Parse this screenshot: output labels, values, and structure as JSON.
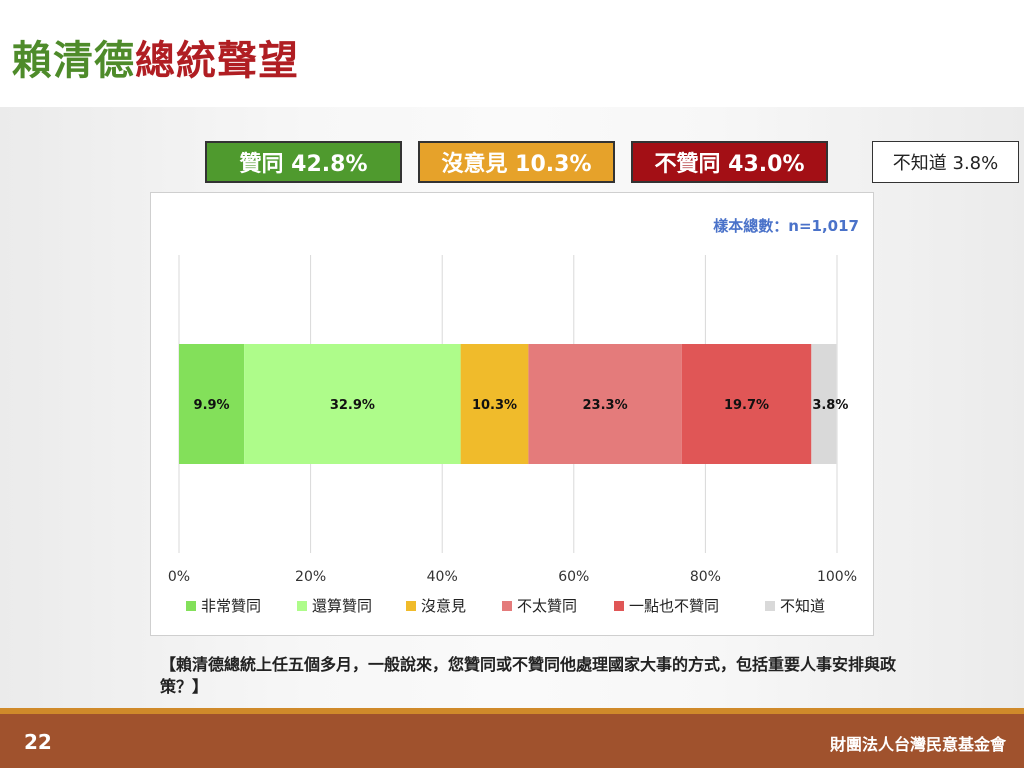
{
  "slide": {
    "title_green": "賴清德",
    "title_red": "總統聲望",
    "page_number": "22",
    "organization": "財團法人台灣民意基金會",
    "question": "【賴清德總統上任五個多月，一般說來，您贊同或不贊同他處理國家大事的方式，包括重要人事安排與政策？】"
  },
  "summary": {
    "agree": "贊同 42.8%",
    "no_opinion": "沒意見 10.3%",
    "disagree": "不贊同 43.0%",
    "dont_know": "不知道 3.8%"
  },
  "chart_data": {
    "type": "bar",
    "orientation": "horizontal-stacked",
    "sample_note": "樣本總數：n=1,017",
    "x_ticks": [
      "0%",
      "20%",
      "40%",
      "60%",
      "80%",
      "100%"
    ],
    "xlim": [
      0,
      100
    ],
    "grid": true,
    "legend_position": "bottom",
    "series": [
      {
        "name": "非常贊同",
        "value": 9.9,
        "label": "9.9%",
        "color": "#83e05a"
      },
      {
        "name": "還算贊同",
        "value": 32.9,
        "label": "32.9%",
        "color": "#aefc8a"
      },
      {
        "name": "沒意見",
        "value": 10.3,
        "label": "10.3%",
        "color": "#f0bb2b"
      },
      {
        "name": "不太贊同",
        "value": 23.3,
        "label": "23.3%",
        "color": "#e47b7b"
      },
      {
        "name": "一點也不贊同",
        "value": 19.7,
        "label": "19.7%",
        "color": "#e05656"
      },
      {
        "name": "不知道",
        "value": 3.8,
        "label": "3.8%",
        "color": "#d9d9d9"
      }
    ]
  },
  "colors": {
    "agree_box": "#4f9a2e",
    "no_opinion_box": "#e6a22a",
    "disagree_box": "#a30f15",
    "footer": "#a0522d",
    "sample_note": "#4a72c9"
  }
}
